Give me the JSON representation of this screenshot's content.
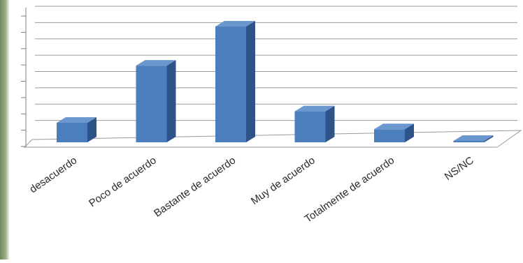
{
  "chart_data": {
    "type": "bar",
    "title": "",
    "xlabel": "",
    "ylabel": "",
    "categories": [
      "desacuerdo",
      "Poco de acuerdo",
      "Bastante de acuerdo",
      "Muy de acuerdo",
      "Totalmente de acuerdo",
      "NS/NC"
    ],
    "values": [
      6,
      23.5,
      35.5,
      9.5,
      4,
      0.3
    ],
    "ylim": [
      0,
      40
    ],
    "three_d": true,
    "grid": true,
    "legend": "none",
    "colors": {
      "bar_front": "#4a7ebd",
      "bar_side": "#2d5388",
      "bar_top": "#6b97cf",
      "grid": "#9a9a9a",
      "axis": "#808080",
      "label": "#2a2a2a"
    }
  }
}
